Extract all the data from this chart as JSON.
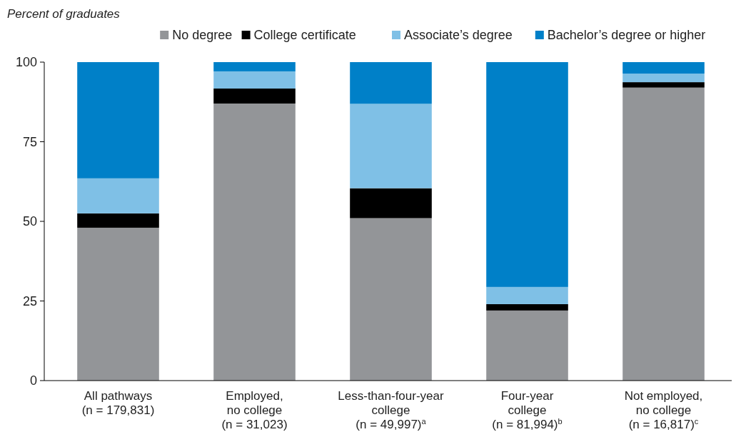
{
  "chart_data": {
    "type": "bar",
    "stacked": true,
    "ylabel": "Percent of graduates",
    "categories": [
      "All pathways\n(n = 179,831)",
      "Employed,\nno college\n(n = 31,023)",
      "Less-than-four-year\ncollege\n(n = 49,997)$^{a}$",
      "Four-year\ncollege\n(n = 81,994)$^{b}$",
      "Not employed,\nno college\n(n = 16,817)$^{c}$"
    ],
    "series": [
      {
        "name": "No degree",
        "color": "#939598",
        "values": [
          48,
          87,
          51,
          22,
          92
        ]
      },
      {
        "name": "College certificate",
        "color": "#000000",
        "values": [
          4.5,
          4.7,
          9.4,
          2,
          1.7
        ]
      },
      {
        "name": "Associate’s degree",
        "color": "#7fc0e6",
        "values": [
          11,
          5.4,
          26.5,
          5.4,
          2.7
        ]
      },
      {
        "name": "Bachelor’s degree or higher",
        "color": "#0080c8",
        "values": [
          36.5,
          2.9,
          13.1,
          70.6,
          3.6
        ]
      }
    ],
    "ylim": [
      0,
      100
    ],
    "yticks": [
      0,
      25,
      50,
      75,
      100
    ],
    "legend": "top right",
    "grid": false
  }
}
